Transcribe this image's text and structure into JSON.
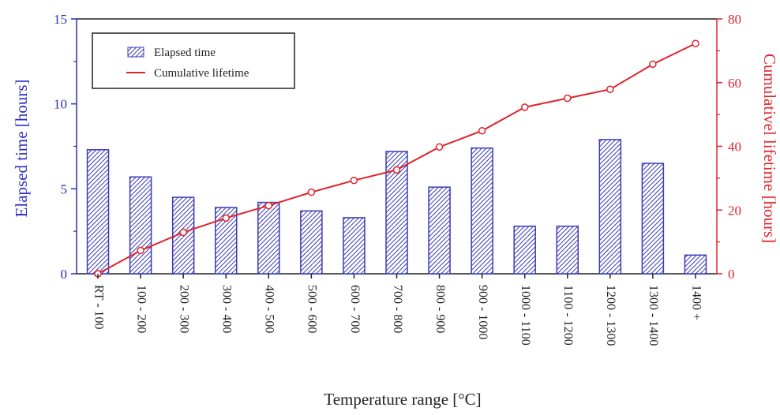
{
  "chart_data": {
    "type": "bar+line",
    "xlabel": "Temperature range [°C]",
    "categories": [
      "RT - 100",
      "100 - 200",
      "200 - 300",
      "300 - 400",
      "400 - 500",
      "500 - 600",
      "600 - 700",
      "700 - 800",
      "800 - 900",
      "900 - 1000",
      "1000 - 1100",
      "1100 - 1200",
      "1200 - 1300",
      "1300 - 1400",
      "1400 +"
    ],
    "left_axis": {
      "label": "Elapsed time [hours]",
      "ylim": [
        0,
        15
      ],
      "ticks": [
        "0",
        "5",
        "10",
        "15"
      ],
      "color": "#2b2bbf"
    },
    "right_axis": {
      "label": "Cumulativel lifetime [hours]",
      "ylim": [
        0,
        80
      ],
      "ticks": [
        "0",
        "20",
        "40",
        "60",
        "80"
      ],
      "color": "#e0232a"
    },
    "series": [
      {
        "name": "Elapsed time",
        "type": "bar",
        "axis": "left",
        "color": "#3a3ab8",
        "pattern": "diagonal-hatch",
        "values": [
          7.3,
          5.7,
          4.5,
          3.9,
          4.2,
          3.7,
          3.3,
          7.2,
          5.1,
          7.4,
          2.8,
          2.8,
          7.9,
          6.5,
          1.1
        ]
      },
      {
        "name": "Cumulative lifetime",
        "type": "line",
        "axis": "right",
        "color": "#e0232a",
        "marker": "open-circle",
        "values": [
          0,
          7.3,
          13.0,
          17.5,
          21.4,
          25.6,
          29.3,
          32.6,
          39.8,
          44.9,
          52.3,
          55.1,
          57.9,
          65.8,
          72.3
        ]
      }
    ],
    "legend": {
      "position": "top-left",
      "framed": true
    }
  }
}
